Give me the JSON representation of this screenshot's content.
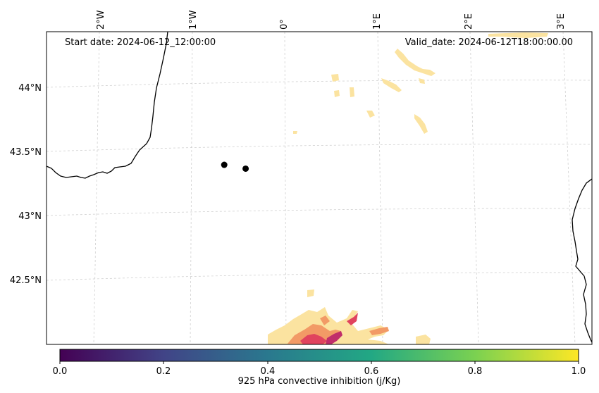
{
  "map": {
    "start_date": "Start date: 2024-06-12_12:00:00",
    "valid_date": "Valid_date: 2024-06-12T18:00:00.00",
    "lon_labels": [
      "2°W",
      "1°W",
      "0°",
      "1°E",
      "2°E",
      "3°E"
    ],
    "lat_labels": [
      "44°N",
      "43.5°N",
      "43°N",
      "42.5°N"
    ],
    "markers": [
      {
        "name": "marker-1",
        "lon": -0.65,
        "lat": 43.39
      },
      {
        "name": "marker-2",
        "lon": -0.42,
        "lat": 43.36
      }
    ],
    "field_colors": {
      "light": "#fbe3a0",
      "mid": "#f29a66",
      "dark": "#e0435e",
      "darkest": "#c02d6a"
    }
  },
  "colorbar": {
    "label": "925 hPa convective inhibition (j/Kg)",
    "ticks": [
      "0.0",
      "0.2",
      "0.4",
      "0.6",
      "0.8",
      "1.0"
    ],
    "range": [
      0,
      1
    ],
    "colors": [
      "#440154",
      "#414487",
      "#2a788e",
      "#22a884",
      "#7ad151",
      "#fde725"
    ]
  }
}
